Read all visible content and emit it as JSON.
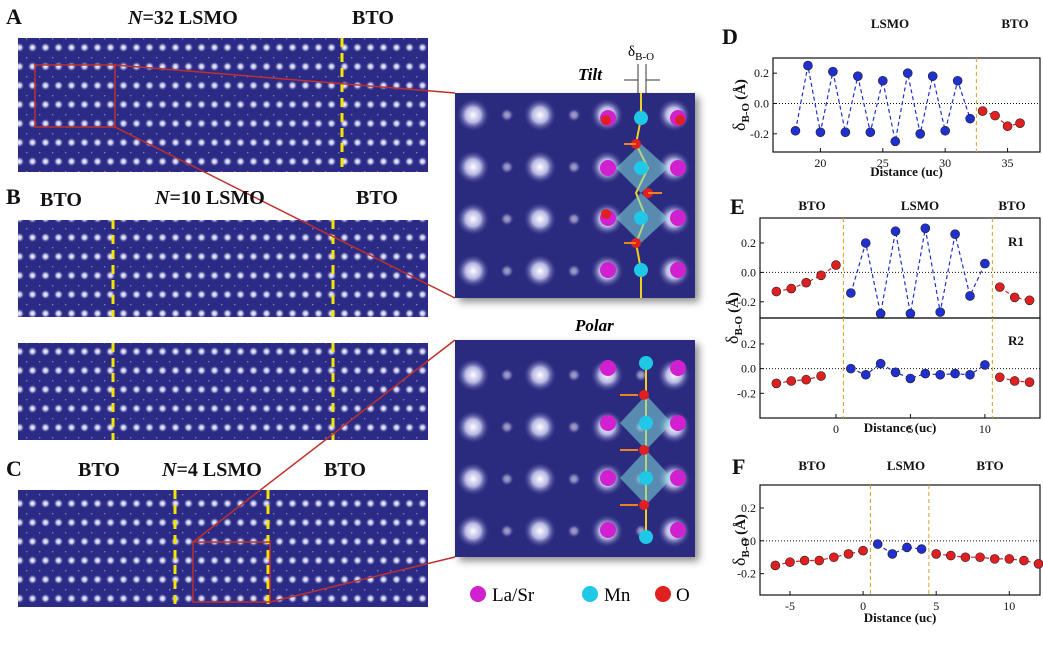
{
  "figure": {
    "panel_labels": {
      "A": "A",
      "B": "B",
      "C": "C",
      "D": "D",
      "E": "E",
      "F": "F"
    },
    "a": {
      "n": "N",
      "lsmo": "=32 LSMO",
      "bto": "BTO"
    },
    "b": {
      "bto_left": "BTO",
      "n": "N",
      "lsmo": "=10 LSMO",
      "bto_right": "BTO"
    },
    "c": {
      "bto_left": "BTO",
      "n": "N",
      "lsmo": "=4 LSMO",
      "bto_right": "BTO"
    },
    "tilt": {
      "title": "Tilt",
      "delta": "δ",
      "delta_sub": "B-O"
    },
    "polar": {
      "title": "Polar"
    },
    "legend": [
      "La/Sr",
      "Mn",
      "O"
    ]
  },
  "chart_data": [
    {
      "type": "scatter",
      "region_labels": [
        "LSMO",
        "BTO"
      ],
      "xlabel": "Distance (uc)",
      "ylabel": {
        "symbol": "δ",
        "sub": "B-O",
        "unit": "(Å)"
      },
      "xlim": [
        16.2,
        37.6
      ],
      "ylim": [
        -0.32,
        0.3
      ],
      "xticks": [
        20,
        25,
        30,
        35
      ],
      "yticks": [
        -0.2,
        {
          "value": 0,
          "label": "0.0"
        },
        0.2
      ],
      "vlines": [
        32.5
      ],
      "reference_line": 0,
      "series": [
        {
          "color": "#1f2fd0",
          "x": [
            18,
            19,
            20,
            21,
            22,
            23,
            24,
            25,
            26,
            27,
            28,
            29,
            30,
            31,
            32
          ],
          "values": [
            -0.18,
            0.25,
            -0.19,
            0.21,
            -0.19,
            0.18,
            -0.19,
            0.15,
            -0.25,
            0.2,
            -0.2,
            0.18,
            -0.18,
            0.15,
            -0.1
          ]
        },
        {
          "color": "#e02020",
          "x": [
            33,
            34,
            35,
            36
          ],
          "values": [
            -0.05,
            -0.08,
            -0.15,
            -0.13
          ]
        }
      ]
    },
    {
      "type": "scatter",
      "region_labels": [
        "BTO",
        "LSMO",
        "BTO"
      ],
      "tag": "R1",
      "xlim": [
        -5.1,
        13.7
      ],
      "ylim": [
        -0.31,
        0.37
      ],
      "yticks": [
        -0.2,
        {
          "value": 0,
          "label": "0.0"
        },
        0.2
      ],
      "vlines": [
        0.5,
        10.5
      ],
      "reference_line": 0,
      "series": [
        {
          "color": "#e02020",
          "x": [
            -4,
            -3,
            -2,
            -1,
            0
          ],
          "values": [
            -0.13,
            -0.11,
            -0.07,
            -0.02,
            0.05
          ]
        },
        {
          "color": "#1f2fd0",
          "x": [
            1,
            2,
            3,
            4,
            5,
            6,
            7,
            8,
            9,
            10
          ],
          "values": [
            -0.14,
            0.2,
            -0.28,
            0.28,
            -0.28,
            0.3,
            -0.27,
            0.26,
            -0.16,
            0.06
          ]
        },
        {
          "color": "#e02020",
          "x": [
            11,
            12,
            13
          ],
          "values": [
            -0.1,
            -0.17,
            -0.19
          ]
        }
      ]
    },
    {
      "type": "scatter",
      "tag": "R2",
      "xlabel": "Distance (uc)",
      "ylabel": {
        "symbol": "δ",
        "sub": "B-O",
        "unit": "(Å)"
      },
      "xlim": [
        -5.1,
        13.7
      ],
      "ylim": [
        -0.4,
        0.41
      ],
      "xticks": [
        0,
        5,
        10
      ],
      "yticks": [
        -0.2,
        {
          "value": 0,
          "label": "0.0"
        },
        0.2
      ],
      "vlines": [
        0.5,
        10.5
      ],
      "reference_line": 0,
      "series": [
        {
          "color": "#e02020",
          "x": [
            -4,
            -3,
            -2,
            -1
          ],
          "values": [
            -0.12,
            -0.1,
            -0.09,
            -0.06
          ]
        },
        {
          "color": "#1f2fd0",
          "x": [
            1,
            2,
            3,
            4,
            5,
            6,
            7,
            8,
            9,
            10
          ],
          "values": [
            0.0,
            -0.05,
            0.04,
            -0.03,
            -0.08,
            -0.04,
            -0.05,
            -0.04,
            -0.05,
            0.03
          ]
        },
        {
          "color": "#e02020",
          "x": [
            11,
            12,
            13
          ],
          "values": [
            -0.07,
            -0.1,
            -0.11
          ]
        }
      ]
    },
    {
      "type": "scatter",
      "region_labels": [
        "BTO",
        "LSMO",
        "BTO"
      ],
      "xlabel": "Distance (uc)",
      "ylabel": {
        "symbol": "δ",
        "sub": "B-O",
        "unit": "(Å)"
      },
      "xlim": [
        -7.05,
        12.1
      ],
      "ylim": [
        -0.33,
        0.34
      ],
      "xticks": [
        -5,
        0,
        5,
        10
      ],
      "yticks": [
        -0.2,
        {
          "value": 0,
          "label": "0.0"
        },
        0.2
      ],
      "vlines": [
        0.5,
        4.5
      ],
      "reference_line": 0,
      "series": [
        {
          "color": "#e02020",
          "x": [
            -6,
            -5,
            -4,
            -3,
            -2,
            -1,
            0
          ],
          "values": [
            -0.15,
            -0.13,
            -0.12,
            -0.12,
            -0.1,
            -0.08,
            -0.06
          ]
        },
        {
          "color": "#1f2fd0",
          "x": [
            1,
            2,
            3,
            4
          ],
          "values": [
            -0.02,
            -0.08,
            -0.04,
            -0.05
          ]
        },
        {
          "color": "#e02020",
          "x": [
            5,
            6,
            7,
            8,
            9,
            10,
            11,
            12
          ],
          "values": [
            -0.08,
            -0.09,
            -0.1,
            -0.1,
            -0.11,
            -0.11,
            -0.12,
            -0.14
          ]
        }
      ]
    }
  ]
}
